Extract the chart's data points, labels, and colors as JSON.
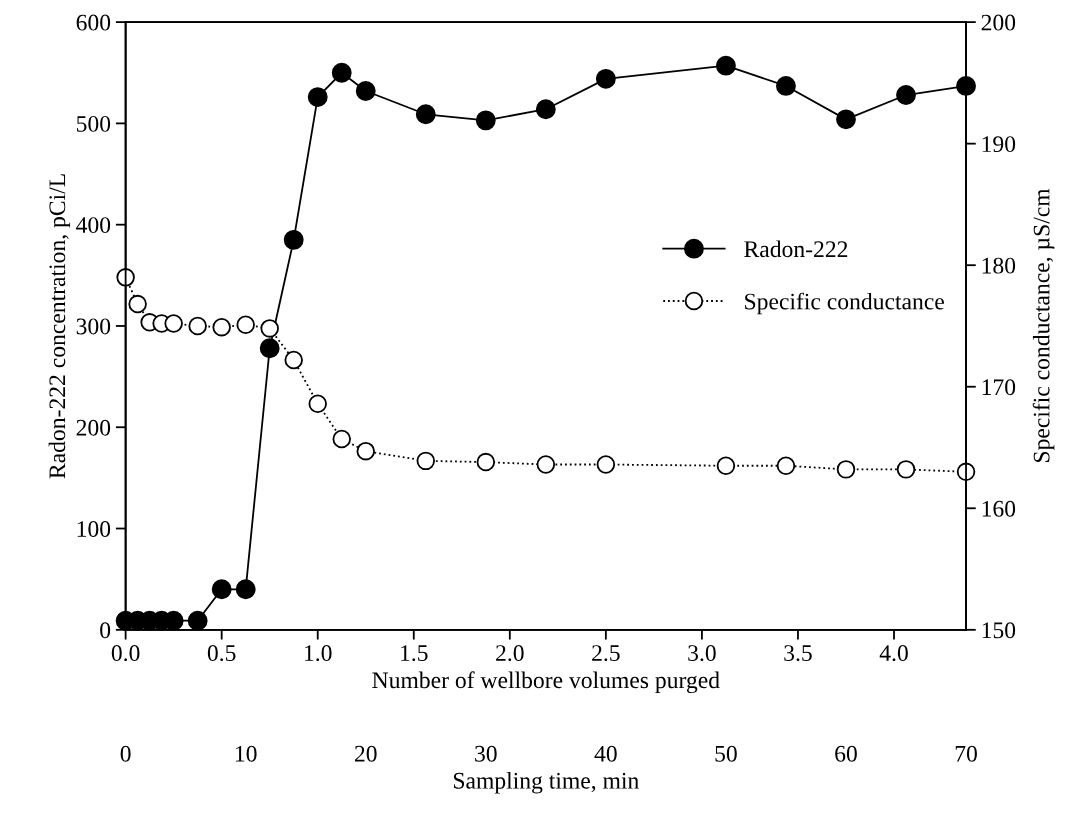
{
  "chart_data": {
    "type": "line",
    "xlabel": "Number of wellbore volumes purged",
    "ylabel": "Radon-222 concentration, pCi/L",
    "y2label": "Specific conductance, µS/cm",
    "x2label": "Sampling time, min",
    "x": [
      0,
      0.0625,
      0.125,
      0.1875,
      0.25,
      0.375,
      0.5,
      0.625,
      0.75,
      0.875,
      1.0,
      1.125,
      1.25,
      1.5625,
      1.875,
      2.1875,
      2.5,
      3.125,
      3.4375,
      3.75,
      4.0625,
      4.375
    ],
    "series": [
      {
        "name": "Radon-222",
        "color": "#000000",
        "marker": "circle",
        "line_style": "solid",
        "values": [
          9,
          9,
          9,
          9,
          9,
          9,
          40,
          40,
          278,
          385,
          526,
          550,
          532,
          509,
          503,
          514,
          544,
          557,
          537,
          504,
          528,
          537
        ]
      },
      {
        "name": "Specific conductance",
        "color": "#000000",
        "marker": "circle",
        "line_style": "dotted",
        "axis": "y2",
        "values": [
          179.0,
          176.8,
          175.3,
          175.2,
          175.2,
          175.0,
          174.9,
          175.1,
          174.8,
          172.2,
          168.6,
          165.7,
          164.7,
          163.9,
          163.8,
          163.6,
          163.6,
          163.5,
          163.5,
          163.2,
          163.2,
          163.0
        ]
      }
    ],
    "xlim": [
      0,
      4.375
    ],
    "xticks": [
      {
        "value": 0,
        "label": "0.0"
      },
      0.5,
      {
        "value": 1,
        "label": "1.0"
      },
      1.5,
      {
        "value": 2,
        "label": "2.0"
      },
      2.5,
      {
        "value": 3,
        "label": "3.0"
      },
      3.5,
      {
        "value": 4,
        "label": "4.0"
      }
    ],
    "ylim": [
      0,
      600
    ],
    "yticks": [
      0,
      100,
      200,
      300,
      400,
      500,
      600
    ],
    "y2lim": [
      150,
      200
    ],
    "y2ticks": [
      150,
      160,
      170,
      180,
      190,
      200
    ],
    "x2lim": [
      0,
      70
    ],
    "x2ticks": [
      0,
      10,
      20,
      30,
      40,
      50,
      60,
      70
    ],
    "legend": "center right",
    "grid": false
  }
}
